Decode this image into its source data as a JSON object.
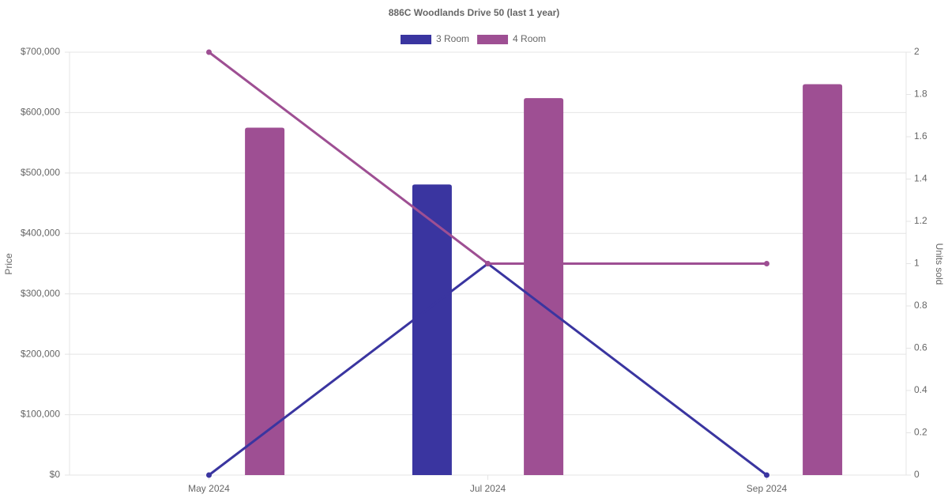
{
  "chart_data": {
    "type": "bar-line",
    "title": "886C Woodlands Drive 50 (last 1 year)",
    "ylabel": "Price",
    "y2label": "Units sold",
    "categories": [
      "May 2024",
      "Jul 2024",
      "Sep 2024"
    ],
    "series": [
      {
        "name": "3 Room",
        "color": "#3a35a0",
        "values": [
          null,
          481000,
          null
        ],
        "units": [
          0,
          1,
          0
        ]
      },
      {
        "name": "4 Room",
        "color": "#9e4f93",
        "values": [
          575000,
          624000,
          647000
        ],
        "units": [
          2,
          1,
          1
        ]
      }
    ],
    "ylim": [
      0,
      700000
    ],
    "yticks": [
      {
        "value": 0,
        "label": "$0"
      },
      {
        "value": 100000,
        "label": "$100,000"
      },
      {
        "value": 200000,
        "label": "$200,000"
      },
      {
        "value": 300000,
        "label": "$300,000"
      },
      {
        "value": 400000,
        "label": "$400,000"
      },
      {
        "value": 500000,
        "label": "$500,000"
      },
      {
        "value": 600000,
        "label": "$600,000"
      },
      {
        "value": 700000,
        "label": "$700,000"
      }
    ],
    "y2lim": [
      0,
      2
    ],
    "y2ticks": [
      0,
      0.2,
      0.4,
      0.6,
      0.8,
      1,
      1.2,
      1.4,
      1.6,
      1.8,
      2
    ],
    "grid": true
  }
}
